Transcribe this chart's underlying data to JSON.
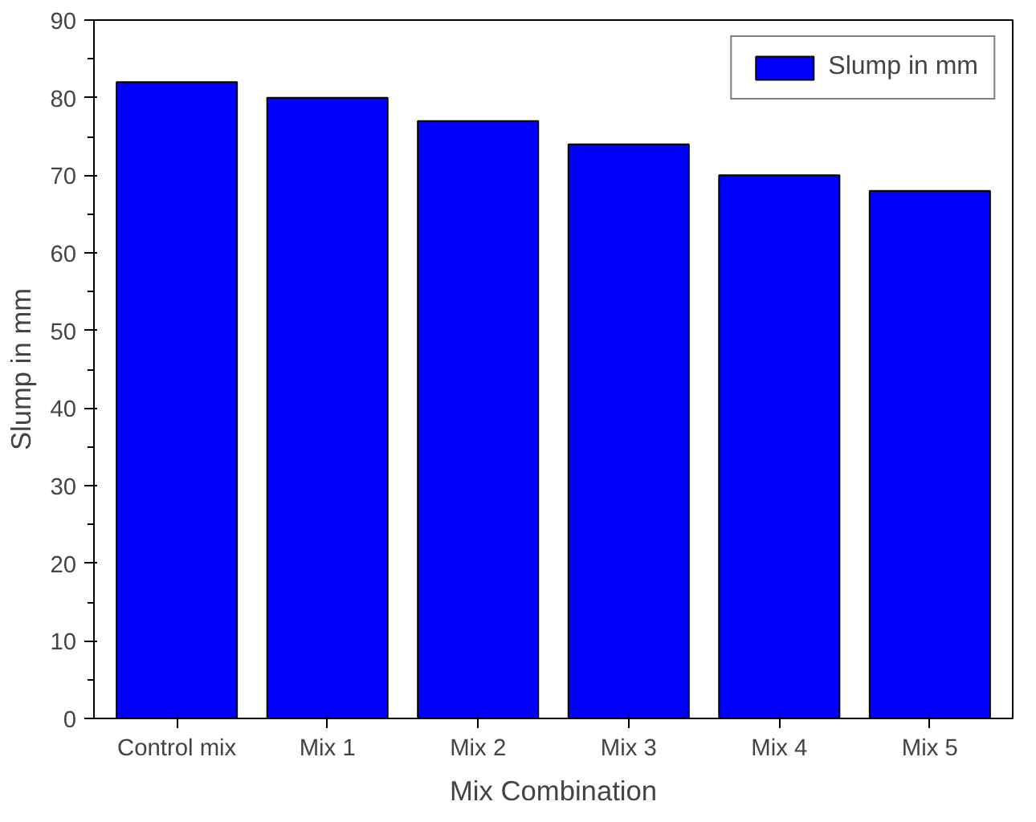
{
  "chart_data": {
    "type": "bar",
    "xlabel": "Mix Combination",
    "ylabel": "Slump in mm",
    "categories": [
      "Control mix",
      "Mix 1",
      "Mix 2",
      "Mix 3",
      "Mix 4",
      "Mix 5"
    ],
    "series": [
      {
        "name": "Slump in mm",
        "color": "#0000ff",
        "values": [
          82,
          80,
          77,
          74,
          70,
          68
        ]
      }
    ],
    "ylim": [
      0,
      90
    ],
    "yticks": [
      0,
      10,
      20,
      30,
      40,
      50,
      60,
      70,
      80,
      90
    ],
    "grid": false,
    "legend": "top right"
  }
}
